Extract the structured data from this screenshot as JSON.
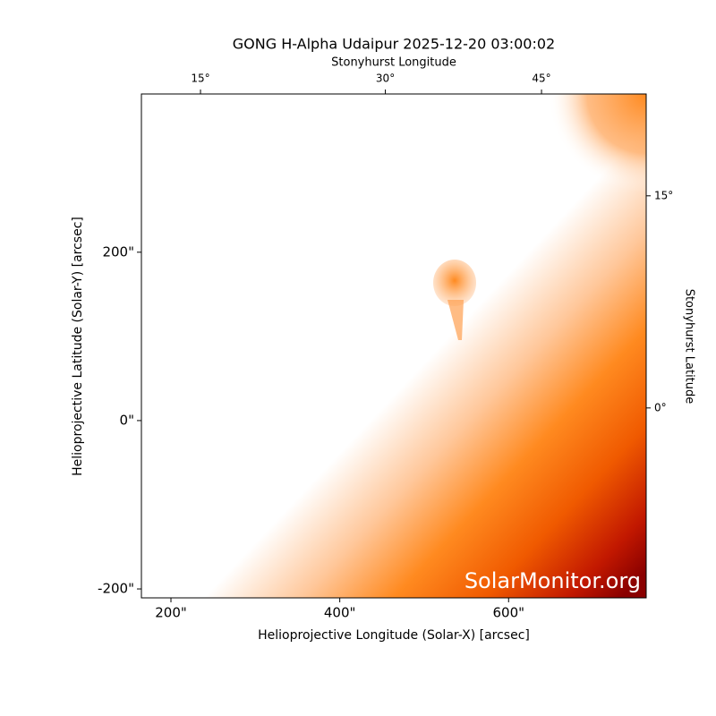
{
  "chart_data": {
    "type": "image",
    "title": "GONG H-Alpha Udaipur 2025-12-20 03:00:02",
    "xlabel": "Helioprojective Longitude (Solar-X) [arcsec]",
    "ylabel": "Helioprojective Latitude (Solar-Y) [arcsec]",
    "top_xlabel": "Stonyhurst Longitude",
    "right_ylabel": "Stonyhurst Latitude",
    "watermark": "SolarMonitor.org",
    "xlim": [
      165,
      763
    ],
    "ylim": [
      -210.6,
      388
    ],
    "xticks": [
      {
        "value": 200,
        "label": "200\""
      },
      {
        "value": 400,
        "label": "400\""
      },
      {
        "value": 600,
        "label": "600\""
      }
    ],
    "yticks": [
      {
        "value": -200,
        "label": "-200\""
      },
      {
        "value": 0,
        "label": "0\""
      },
      {
        "value": 200,
        "label": "200\""
      }
    ],
    "top_xticks": [
      {
        "value": 235,
        "label": "15°"
      },
      {
        "value": 454,
        "label": "30°"
      },
      {
        "value": 639,
        "label": "45°"
      }
    ],
    "right_yticks": [
      {
        "value": 15,
        "label": "0°"
      },
      {
        "value": 267,
        "label": "15°"
      }
    ]
  }
}
